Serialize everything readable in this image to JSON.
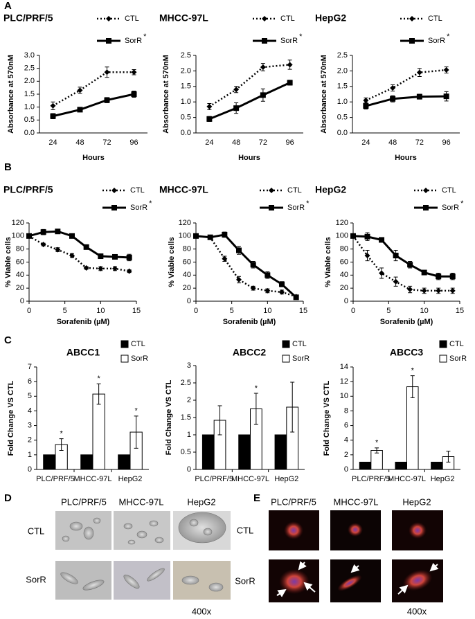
{
  "panel_labels": [
    "A",
    "B",
    "C",
    "D",
    "E"
  ],
  "chart_data": [
    {
      "type": "line",
      "title": "PLC/PRF/5",
      "x_label": "Hours",
      "y_label": "Absorbance at 570nM",
      "categories": [
        "24",
        "48",
        "72",
        "96"
      ],
      "ylim": [
        0,
        3
      ],
      "yticks": [
        {
          "value": 0,
          "label": "0.0"
        },
        0.5,
        {
          "value": 1,
          "label": "1.0"
        },
        1.5,
        {
          "value": 2,
          "label": "2.0"
        },
        2.5,
        {
          "value": 3,
          "label": "3.0"
        }
      ],
      "series": [
        {
          "name": "CTL",
          "color": "#000000",
          "line_style": "dotted",
          "marker": "diamond",
          "values": [
            1.05,
            1.65,
            2.35,
            2.35
          ],
          "errors": [
            0.15,
            0.12,
            0.2,
            0.1
          ]
        },
        {
          "name": "SorR",
          "name_note": "*",
          "color": "#000000",
          "line_style": "solid",
          "marker": "square",
          "values": [
            0.65,
            0.9,
            1.27,
            1.5
          ],
          "errors": [
            0.1,
            0.08,
            0.1,
            0.12
          ]
        }
      ]
    },
    {
      "type": "line",
      "title": "MHCC-97L",
      "x_label": "Hours",
      "y_label": "Absorbance at 570nM",
      "categories": [
        "24",
        "48",
        "72",
        "96"
      ],
      "ylim": [
        0,
        2.5
      ],
      "yticks": [
        {
          "value": 0,
          "label": "0.0"
        },
        0.5,
        {
          "value": 1,
          "label": "1.0"
        },
        1.5,
        {
          "value": 2,
          "label": "2.0"
        },
        2.5
      ],
      "series": [
        {
          "name": "CTL",
          "color": "#000000",
          "line_style": "dotted",
          "marker": "diamond",
          "values": [
            0.85,
            1.4,
            2.12,
            2.2
          ],
          "errors": [
            0.1,
            0.1,
            0.12,
            0.15
          ]
        },
        {
          "name": "SorR",
          "name_note": "*",
          "color": "#000000",
          "line_style": "solid",
          "marker": "square",
          "values": [
            0.45,
            0.8,
            1.22,
            1.62
          ],
          "errors": [
            0.08,
            0.17,
            0.2,
            0.08
          ]
        }
      ]
    },
    {
      "type": "line",
      "title": "HepG2",
      "x_label": "Hours",
      "y_label": "Absorbance at 570nM",
      "categories": [
        "24",
        "48",
        "72",
        "96"
      ],
      "ylim": [
        0,
        2.5
      ],
      "yticks": [
        {
          "value": 0,
          "label": "0.0"
        },
        0.5,
        {
          "value": 1,
          "label": "1.0"
        },
        1.5,
        {
          "value": 2,
          "label": "2.0"
        },
        2.5
      ],
      "series": [
        {
          "name": "CTL",
          "color": "#000000",
          "line_style": "dotted",
          "marker": "diamond",
          "values": [
            1.05,
            1.45,
            1.95,
            2.03
          ],
          "errors": [
            0.08,
            0.1,
            0.13,
            0.1
          ]
        },
        {
          "name": "SorR",
          "name_note": "*",
          "color": "#000000",
          "line_style": "solid",
          "marker": "square",
          "values": [
            0.87,
            1.1,
            1.17,
            1.18
          ],
          "errors": [
            0.1,
            0.1,
            0.08,
            0.15
          ]
        }
      ]
    },
    {
      "type": "line",
      "title": "PLC/PRF/5",
      "x_label": "Sorafenib (µM)",
      "y_label": "% Viable cells",
      "x": [
        0,
        2,
        4,
        6,
        8,
        10,
        12,
        14
      ],
      "xlim": [
        0,
        15
      ],
      "xticks": [
        0,
        5,
        10,
        15
      ],
      "ylim": [
        0,
        120
      ],
      "yticks": [
        0,
        20,
        40,
        60,
        80,
        100,
        120
      ],
      "series": [
        {
          "name": "CTL",
          "color": "#000000",
          "line_style": "dotted",
          "marker": "diamond",
          "values": [
            100,
            87,
            79,
            70,
            51,
            50,
            50,
            46
          ],
          "errors": [
            2,
            2,
            3,
            3,
            2,
            3,
            3,
            2
          ]
        },
        {
          "name": "SorR",
          "name_note": "*",
          "color": "#000000",
          "line_style": "solid",
          "marker": "square",
          "values": [
            100,
            106,
            107,
            100,
            83,
            69,
            68,
            67
          ],
          "errors": [
            2,
            4,
            3,
            2,
            3,
            3,
            3,
            5
          ]
        }
      ]
    },
    {
      "type": "line",
      "title": "MHCC-97L",
      "x_label": "Sorafenib (µM)",
      "y_label": "% Viable cells",
      "x": [
        0,
        2,
        4,
        6,
        8,
        10,
        12,
        14
      ],
      "xlim": [
        0,
        15
      ],
      "xticks": [
        0,
        5,
        10,
        15
      ],
      "ylim": [
        0,
        120
      ],
      "yticks": [
        0,
        20,
        40,
        60,
        80,
        100,
        120
      ],
      "series": [
        {
          "name": "CTL",
          "color": "#000000",
          "line_style": "dotted",
          "marker": "diamond",
          "values": [
            100,
            98,
            65,
            33,
            20,
            16,
            14,
            7
          ],
          "errors": [
            2,
            2,
            4,
            5,
            3,
            3,
            3,
            2
          ]
        },
        {
          "name": "SorR",
          "name_note": "*",
          "color": "#000000",
          "line_style": "solid",
          "marker": "square",
          "values": [
            100,
            98,
            102,
            78,
            56,
            40,
            26,
            6
          ],
          "errors": [
            2,
            3,
            4,
            6,
            5,
            5,
            4,
            2
          ]
        }
      ]
    },
    {
      "type": "line",
      "title": "HepG2",
      "x_label": "Sorafenib (µM)",
      "y_label": "% Viable cells",
      "x": [
        0,
        2,
        4,
        6,
        8,
        10,
        12,
        14
      ],
      "xlim": [
        0,
        15
      ],
      "xticks": [
        0,
        5,
        10,
        15
      ],
      "ylim": [
        0,
        120
      ],
      "yticks": [
        0,
        20,
        40,
        60,
        80,
        100,
        120
      ],
      "series": [
        {
          "name": "CTL",
          "color": "#000000",
          "line_style": "dotted",
          "marker": "diamond",
          "values": [
            100,
            70,
            43,
            30,
            18,
            16,
            16,
            16
          ],
          "errors": [
            2,
            8,
            8,
            7,
            5,
            4,
            4,
            4
          ]
        },
        {
          "name": "SorR",
          "name_note": "*",
          "color": "#000000",
          "line_style": "solid",
          "marker": "square",
          "values": [
            100,
            99,
            94,
            70,
            56,
            44,
            38,
            38
          ],
          "errors": [
            2,
            6,
            3,
            8,
            5,
            3,
            5,
            5
          ]
        }
      ]
    },
    {
      "type": "bar",
      "title": "ABCC1",
      "y_label": "Fold Change VS CTL",
      "significance_label": "*",
      "categories": [
        "PLC/PRF/5",
        "MHCC-97L",
        "HepG2"
      ],
      "ylim": [
        0,
        7
      ],
      "yticks": [
        0,
        1,
        2,
        3,
        4,
        5,
        6,
        7
      ],
      "series": [
        {
          "name": "CTL",
          "color": "#000000",
          "values": [
            1,
            1,
            1
          ]
        },
        {
          "name": "SorR",
          "color": "#ffffff",
          "values": [
            1.7,
            5.15,
            2.55
          ],
          "errors": [
            0.4,
            0.7,
            1.1
          ],
          "significant": [
            true,
            true,
            true
          ]
        }
      ]
    },
    {
      "type": "bar",
      "title": "ABCC2",
      "y_label": "Fold Change VS CTL",
      "significance_label": "*",
      "categories": [
        "PLC/PRF/5",
        "MHCC-97L",
        "HepG2"
      ],
      "ylim": [
        0,
        3
      ],
      "yticks": [
        0,
        0.5,
        1,
        1.5,
        2,
        2.5,
        3
      ],
      "series": [
        {
          "name": "CTL",
          "color": "#000000",
          "values": [
            1,
            1,
            1
          ]
        },
        {
          "name": "SorR",
          "color": "#ffffff",
          "values": [
            1.42,
            1.75,
            1.8
          ],
          "errors": [
            0.42,
            0.45,
            0.72
          ],
          "significant": [
            false,
            true,
            false
          ]
        }
      ]
    },
    {
      "type": "bar",
      "title": "ABCC3",
      "y_label": "Fold Change VS CTL",
      "significance_label": "*",
      "categories": [
        "PLC/PRF/5",
        "MHCC-97L",
        "HepG2"
      ],
      "ylim": [
        0,
        14
      ],
      "yticks": [
        0,
        2,
        4,
        6,
        8,
        10,
        12,
        14
      ],
      "series": [
        {
          "name": "CTL",
          "color": "#000000",
          "values": [
            1,
            1,
            1
          ]
        },
        {
          "name": "SorR",
          "color": "#ffffff",
          "values": [
            2.6,
            11.3,
            1.75
          ],
          "errors": [
            0.35,
            1.5,
            0.75
          ],
          "significant": [
            true,
            true,
            false
          ]
        }
      ]
    }
  ],
  "images_d": {
    "columns": [
      "PLC/PRF/5",
      "MHCC-97L",
      "HepG2"
    ],
    "rows": [
      "CTL",
      "SorR"
    ],
    "magnification": "400x"
  },
  "images_e": {
    "columns": [
      "PLC/PRF/5",
      "MHCC-97L",
      "HepG2"
    ],
    "rows": [
      "CTL",
      "SorR"
    ],
    "magnification": "400x"
  }
}
